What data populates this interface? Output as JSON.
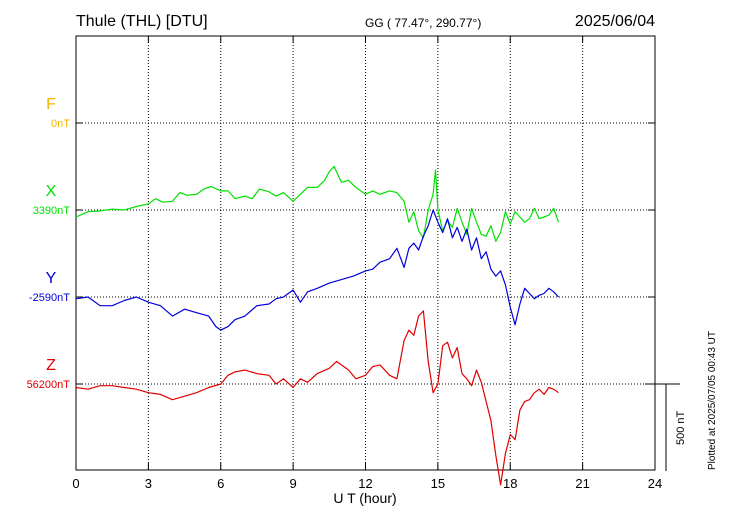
{
  "header": {
    "station": "Thule (THL)  [DTU]",
    "coords": "GG ( 77.47°, 290.77°)",
    "date": "2025/06/04"
  },
  "footer": {
    "plotted": "Plotted at 2025/07/05 00:43 UT"
  },
  "colors": {
    "F": "#f0b400",
    "X": "#00e000",
    "Y": "#0000dd",
    "Z": "#e00000",
    "grid": "#000000"
  },
  "chart_data": {
    "type": "line",
    "xlabel": "U T (hour)",
    "xlim": [
      0,
      24
    ],
    "xticks": [
      0,
      3,
      6,
      9,
      12,
      15,
      18,
      21,
      24
    ],
    "scale_bar_label": "500 nT",
    "scale_bar_nT": 500,
    "series": [
      {
        "name": "F",
        "baseline_label": "0nT",
        "baseline_nT": 0,
        "color": "#f0b400",
        "points": []
      },
      {
        "name": "X",
        "baseline_label": "3390nT",
        "baseline_nT": 3390,
        "color": "#00e000",
        "points": [
          [
            0.0,
            3350
          ],
          [
            0.5,
            3380
          ],
          [
            1.0,
            3385
          ],
          [
            1.5,
            3395
          ],
          [
            2.0,
            3390
          ],
          [
            2.5,
            3410
          ],
          [
            3.0,
            3425
          ],
          [
            3.3,
            3455
          ],
          [
            3.6,
            3435
          ],
          [
            4.0,
            3440
          ],
          [
            4.3,
            3490
          ],
          [
            4.6,
            3475
          ],
          [
            5.0,
            3480
          ],
          [
            5.3,
            3510
          ],
          [
            5.6,
            3525
          ],
          [
            6.0,
            3500
          ],
          [
            6.3,
            3500
          ],
          [
            6.6,
            3455
          ],
          [
            7.0,
            3470
          ],
          [
            7.3,
            3455
          ],
          [
            7.6,
            3510
          ],
          [
            8.0,
            3495
          ],
          [
            8.3,
            3470
          ],
          [
            8.6,
            3490
          ],
          [
            9.0,
            3440
          ],
          [
            9.3,
            3480
          ],
          [
            9.6,
            3520
          ],
          [
            10.0,
            3520
          ],
          [
            10.3,
            3560
          ],
          [
            10.5,
            3610
          ],
          [
            10.7,
            3640
          ],
          [
            11.0,
            3550
          ],
          [
            11.3,
            3560
          ],
          [
            11.6,
            3520
          ],
          [
            12.0,
            3480
          ],
          [
            12.3,
            3500
          ],
          [
            12.6,
            3480
          ],
          [
            13.0,
            3500
          ],
          [
            13.3,
            3490
          ],
          [
            13.6,
            3440
          ],
          [
            13.8,
            3320
          ],
          [
            14.0,
            3380
          ],
          [
            14.2,
            3270
          ],
          [
            14.4,
            3230
          ],
          [
            14.6,
            3390
          ],
          [
            14.8,
            3480
          ],
          [
            14.9,
            3620
          ],
          [
            15.0,
            3390
          ],
          [
            15.2,
            3270
          ],
          [
            15.4,
            3330
          ],
          [
            15.6,
            3290
          ],
          [
            15.8,
            3400
          ],
          [
            16.0,
            3320
          ],
          [
            16.2,
            3250
          ],
          [
            16.4,
            3400
          ],
          [
            16.6,
            3320
          ],
          [
            16.8,
            3250
          ],
          [
            17.0,
            3240
          ],
          [
            17.2,
            3300
          ],
          [
            17.4,
            3210
          ],
          [
            17.6,
            3260
          ],
          [
            17.8,
            3380
          ],
          [
            18.0,
            3310
          ],
          [
            18.2,
            3380
          ],
          [
            18.4,
            3350
          ],
          [
            18.6,
            3320
          ],
          [
            18.8,
            3340
          ],
          [
            19.0,
            3400
          ],
          [
            19.2,
            3340
          ],
          [
            19.4,
            3350
          ],
          [
            19.6,
            3360
          ],
          [
            19.8,
            3400
          ],
          [
            20.0,
            3320
          ]
        ]
      },
      {
        "name": "Y",
        "baseline_label": "-2590nT",
        "baseline_nT": -2590,
        "color": "#0000dd",
        "points": [
          [
            0.0,
            -2600
          ],
          [
            0.5,
            -2590
          ],
          [
            1.0,
            -2640
          ],
          [
            1.5,
            -2640
          ],
          [
            2.0,
            -2610
          ],
          [
            2.5,
            -2590
          ],
          [
            3.0,
            -2620
          ],
          [
            3.5,
            -2640
          ],
          [
            4.0,
            -2700
          ],
          [
            4.5,
            -2660
          ],
          [
            5.0,
            -2680
          ],
          [
            5.5,
            -2700
          ],
          [
            5.8,
            -2760
          ],
          [
            6.0,
            -2780
          ],
          [
            6.3,
            -2760
          ],
          [
            6.6,
            -2720
          ],
          [
            7.0,
            -2700
          ],
          [
            7.5,
            -2640
          ],
          [
            8.0,
            -2630
          ],
          [
            8.3,
            -2600
          ],
          [
            8.6,
            -2590
          ],
          [
            9.0,
            -2550
          ],
          [
            9.3,
            -2620
          ],
          [
            9.6,
            -2560
          ],
          [
            10.0,
            -2540
          ],
          [
            10.5,
            -2510
          ],
          [
            11.0,
            -2490
          ],
          [
            11.5,
            -2470
          ],
          [
            12.0,
            -2440
          ],
          [
            12.3,
            -2430
          ],
          [
            12.6,
            -2390
          ],
          [
            13.0,
            -2370
          ],
          [
            13.3,
            -2310
          ],
          [
            13.6,
            -2420
          ],
          [
            13.8,
            -2310
          ],
          [
            14.0,
            -2280
          ],
          [
            14.2,
            -2320
          ],
          [
            14.4,
            -2240
          ],
          [
            14.6,
            -2180
          ],
          [
            14.8,
            -2090
          ],
          [
            15.0,
            -2160
          ],
          [
            15.2,
            -2220
          ],
          [
            15.4,
            -2140
          ],
          [
            15.6,
            -2250
          ],
          [
            15.8,
            -2190
          ],
          [
            16.0,
            -2270
          ],
          [
            16.2,
            -2200
          ],
          [
            16.4,
            -2320
          ],
          [
            16.6,
            -2250
          ],
          [
            16.8,
            -2370
          ],
          [
            17.0,
            -2330
          ],
          [
            17.2,
            -2430
          ],
          [
            17.4,
            -2470
          ],
          [
            17.6,
            -2440
          ],
          [
            17.8,
            -2520
          ],
          [
            18.0,
            -2650
          ],
          [
            18.2,
            -2750
          ],
          [
            18.4,
            -2630
          ],
          [
            18.6,
            -2540
          ],
          [
            18.8,
            -2570
          ],
          [
            19.0,
            -2600
          ],
          [
            19.2,
            -2580
          ],
          [
            19.4,
            -2570
          ],
          [
            19.6,
            -2540
          ],
          [
            19.8,
            -2560
          ],
          [
            20.0,
            -2590
          ]
        ]
      },
      {
        "name": "Z",
        "baseline_label": "56200nT",
        "baseline_nT": 56200,
        "color": "#e00000",
        "points": [
          [
            0.0,
            56180
          ],
          [
            0.5,
            56170
          ],
          [
            1.0,
            56190
          ],
          [
            1.5,
            56190
          ],
          [
            2.0,
            56180
          ],
          [
            2.5,
            56170
          ],
          [
            3.0,
            56150
          ],
          [
            3.5,
            56140
          ],
          [
            4.0,
            56110
          ],
          [
            4.5,
            56130
          ],
          [
            5.0,
            56150
          ],
          [
            5.5,
            56180
          ],
          [
            6.0,
            56200
          ],
          [
            6.3,
            56250
          ],
          [
            6.6,
            56270
          ],
          [
            7.0,
            56280
          ],
          [
            7.5,
            56260
          ],
          [
            8.0,
            56250
          ],
          [
            8.3,
            56200
          ],
          [
            8.6,
            56230
          ],
          [
            9.0,
            56180
          ],
          [
            9.3,
            56230
          ],
          [
            9.6,
            56210
          ],
          [
            10.0,
            56260
          ],
          [
            10.5,
            56290
          ],
          [
            10.8,
            56330
          ],
          [
            11.0,
            56310
          ],
          [
            11.3,
            56280
          ],
          [
            11.6,
            56230
          ],
          [
            12.0,
            56250
          ],
          [
            12.3,
            56300
          ],
          [
            12.6,
            56310
          ],
          [
            13.0,
            56250
          ],
          [
            13.3,
            56230
          ],
          [
            13.6,
            56450
          ],
          [
            13.8,
            56510
          ],
          [
            14.0,
            56480
          ],
          [
            14.2,
            56590
          ],
          [
            14.4,
            56620
          ],
          [
            14.6,
            56330
          ],
          [
            14.8,
            56150
          ],
          [
            15.0,
            56200
          ],
          [
            15.2,
            56420
          ],
          [
            15.4,
            56440
          ],
          [
            15.6,
            56350
          ],
          [
            15.8,
            56410
          ],
          [
            16.0,
            56260
          ],
          [
            16.2,
            56230
          ],
          [
            16.4,
            56190
          ],
          [
            16.6,
            56280
          ],
          [
            16.8,
            56210
          ],
          [
            17.0,
            56100
          ],
          [
            17.2,
            55990
          ],
          [
            17.4,
            55790
          ],
          [
            17.6,
            55620
          ],
          [
            17.8,
            55800
          ],
          [
            18.0,
            55910
          ],
          [
            18.2,
            55880
          ],
          [
            18.4,
            56050
          ],
          [
            18.6,
            56100
          ],
          [
            18.8,
            56110
          ],
          [
            19.0,
            56150
          ],
          [
            19.2,
            56170
          ],
          [
            19.4,
            56140
          ],
          [
            19.6,
            56180
          ],
          [
            19.8,
            56170
          ],
          [
            20.0,
            56150
          ]
        ]
      }
    ]
  }
}
